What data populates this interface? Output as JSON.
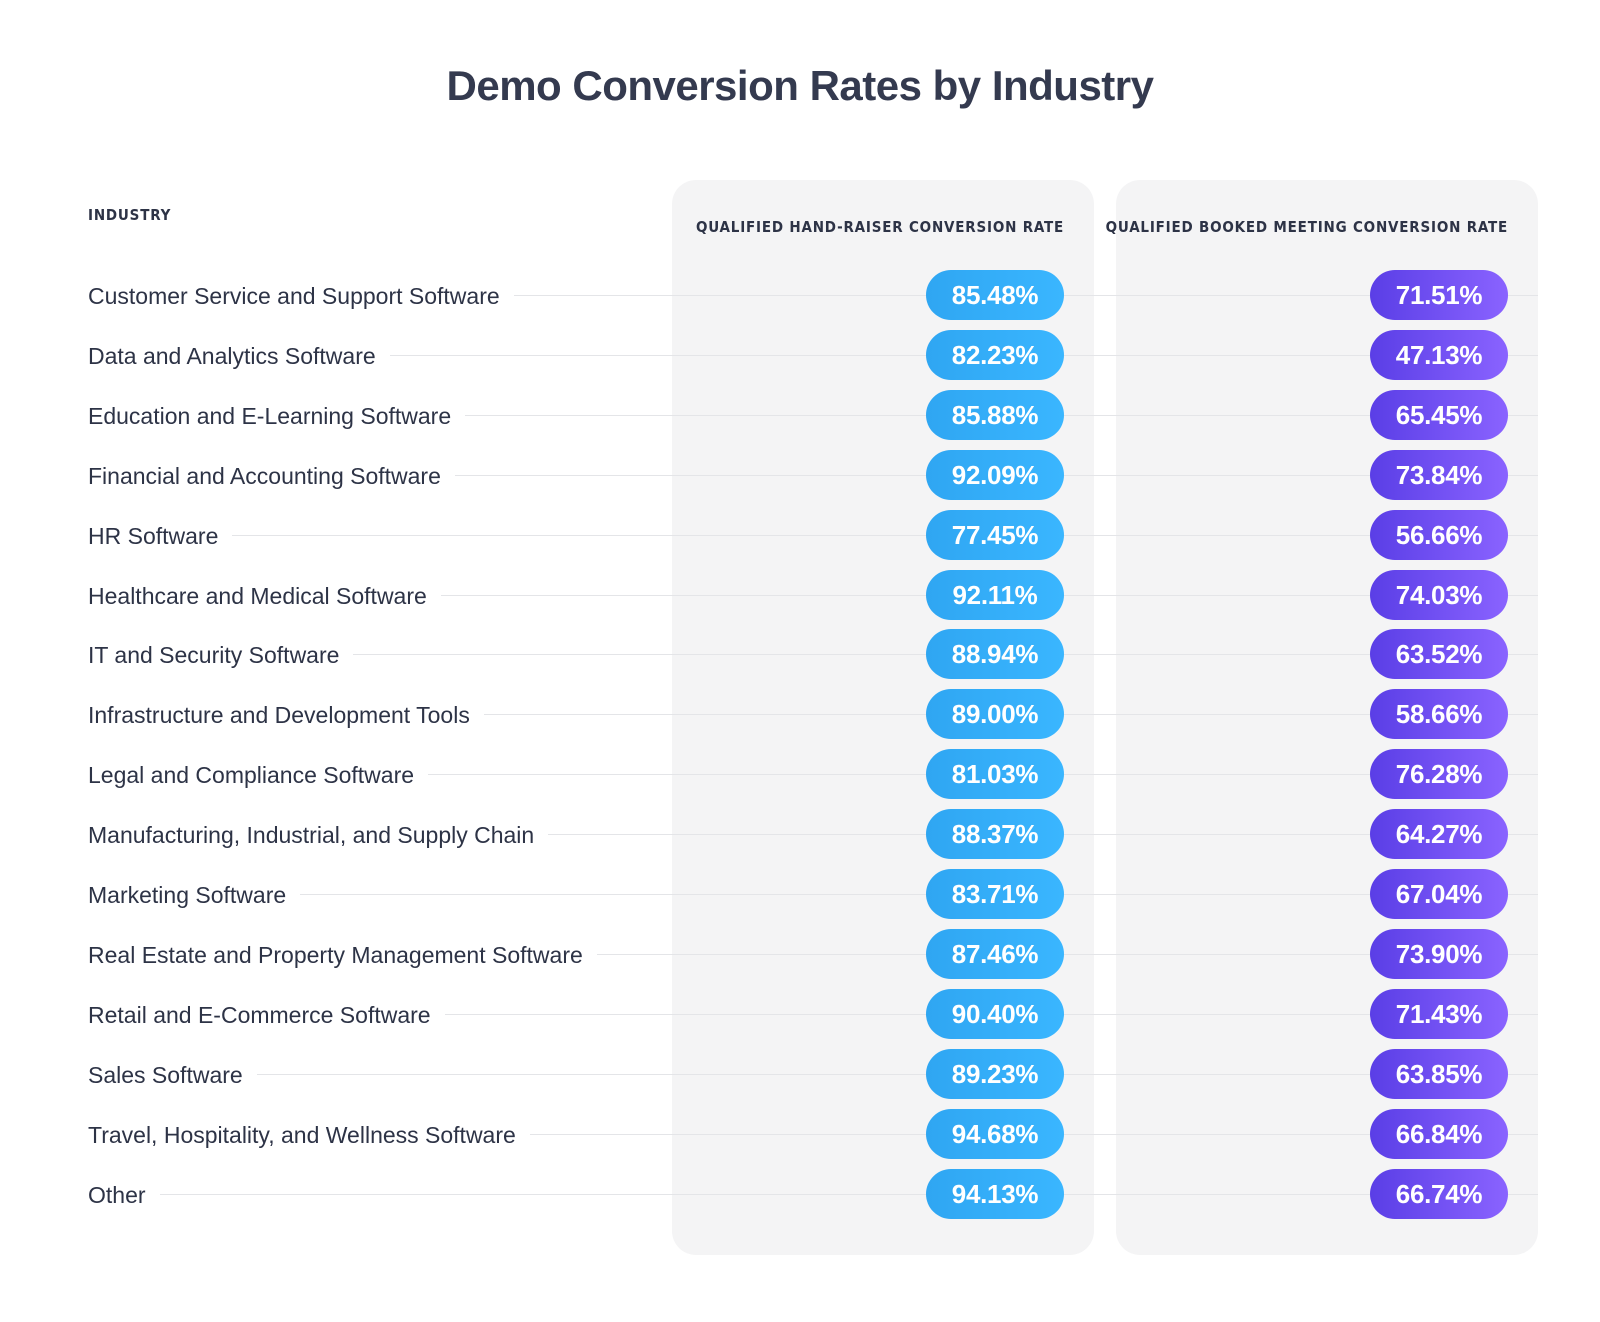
{
  "title": "Demo Conversion Rates by Industry",
  "colors": {
    "hand_raiser": "#38b2fb",
    "booked_meeting": "#6c4ff1",
    "panel": "#f4f4f5",
    "text": "#2d3346"
  },
  "chart_data": {
    "type": "table",
    "title": "Demo Conversion Rates by Industry",
    "columns": [
      "Industry",
      "Qualified Hand-Raiser Conversion Rate",
      "Qualified Booked Meeting Conversion Rate"
    ],
    "rows": [
      {
        "industry": "Customer Service and Support Software",
        "hand_raiser": "85.48%",
        "booked_meeting": "71.51%"
      },
      {
        "industry": "Data and Analytics Software",
        "hand_raiser": "82.23%",
        "booked_meeting": "47.13%"
      },
      {
        "industry": "Education and E-Learning Software",
        "hand_raiser": "85.88%",
        "booked_meeting": "65.45%"
      },
      {
        "industry": "Financial and Accounting Software",
        "hand_raiser": "92.09%",
        "booked_meeting": "73.84%"
      },
      {
        "industry": "HR Software",
        "hand_raiser": "77.45%",
        "booked_meeting": "56.66%"
      },
      {
        "industry": "Healthcare and Medical Software",
        "hand_raiser": "92.11%",
        "booked_meeting": "74.03%"
      },
      {
        "industry": "IT and Security Software",
        "hand_raiser": "88.94%",
        "booked_meeting": "63.52%"
      },
      {
        "industry": "Infrastructure and Development Tools",
        "hand_raiser": "89.00%",
        "booked_meeting": "58.66%"
      },
      {
        "industry": "Legal and Compliance Software",
        "hand_raiser": "81.03%",
        "booked_meeting": "76.28%"
      },
      {
        "industry": "Manufacturing, Industrial, and Supply Chain",
        "hand_raiser": "88.37%",
        "booked_meeting": "64.27%"
      },
      {
        "industry": "Marketing Software",
        "hand_raiser": "83.71%",
        "booked_meeting": "67.04%"
      },
      {
        "industry": "Real Estate and Property Management Software",
        "hand_raiser": "87.46%",
        "booked_meeting": "73.90%"
      },
      {
        "industry": "Retail and E-Commerce Software",
        "hand_raiser": "90.40%",
        "booked_meeting": "71.43%"
      },
      {
        "industry": "Sales Software",
        "hand_raiser": "89.23%",
        "booked_meeting": "63.85%"
      },
      {
        "industry": "Travel, Hospitality, and Wellness Software",
        "hand_raiser": "94.68%",
        "booked_meeting": "66.84%"
      },
      {
        "industry": "Other",
        "hand_raiser": "94.13%",
        "booked_meeting": "66.74%"
      }
    ]
  }
}
